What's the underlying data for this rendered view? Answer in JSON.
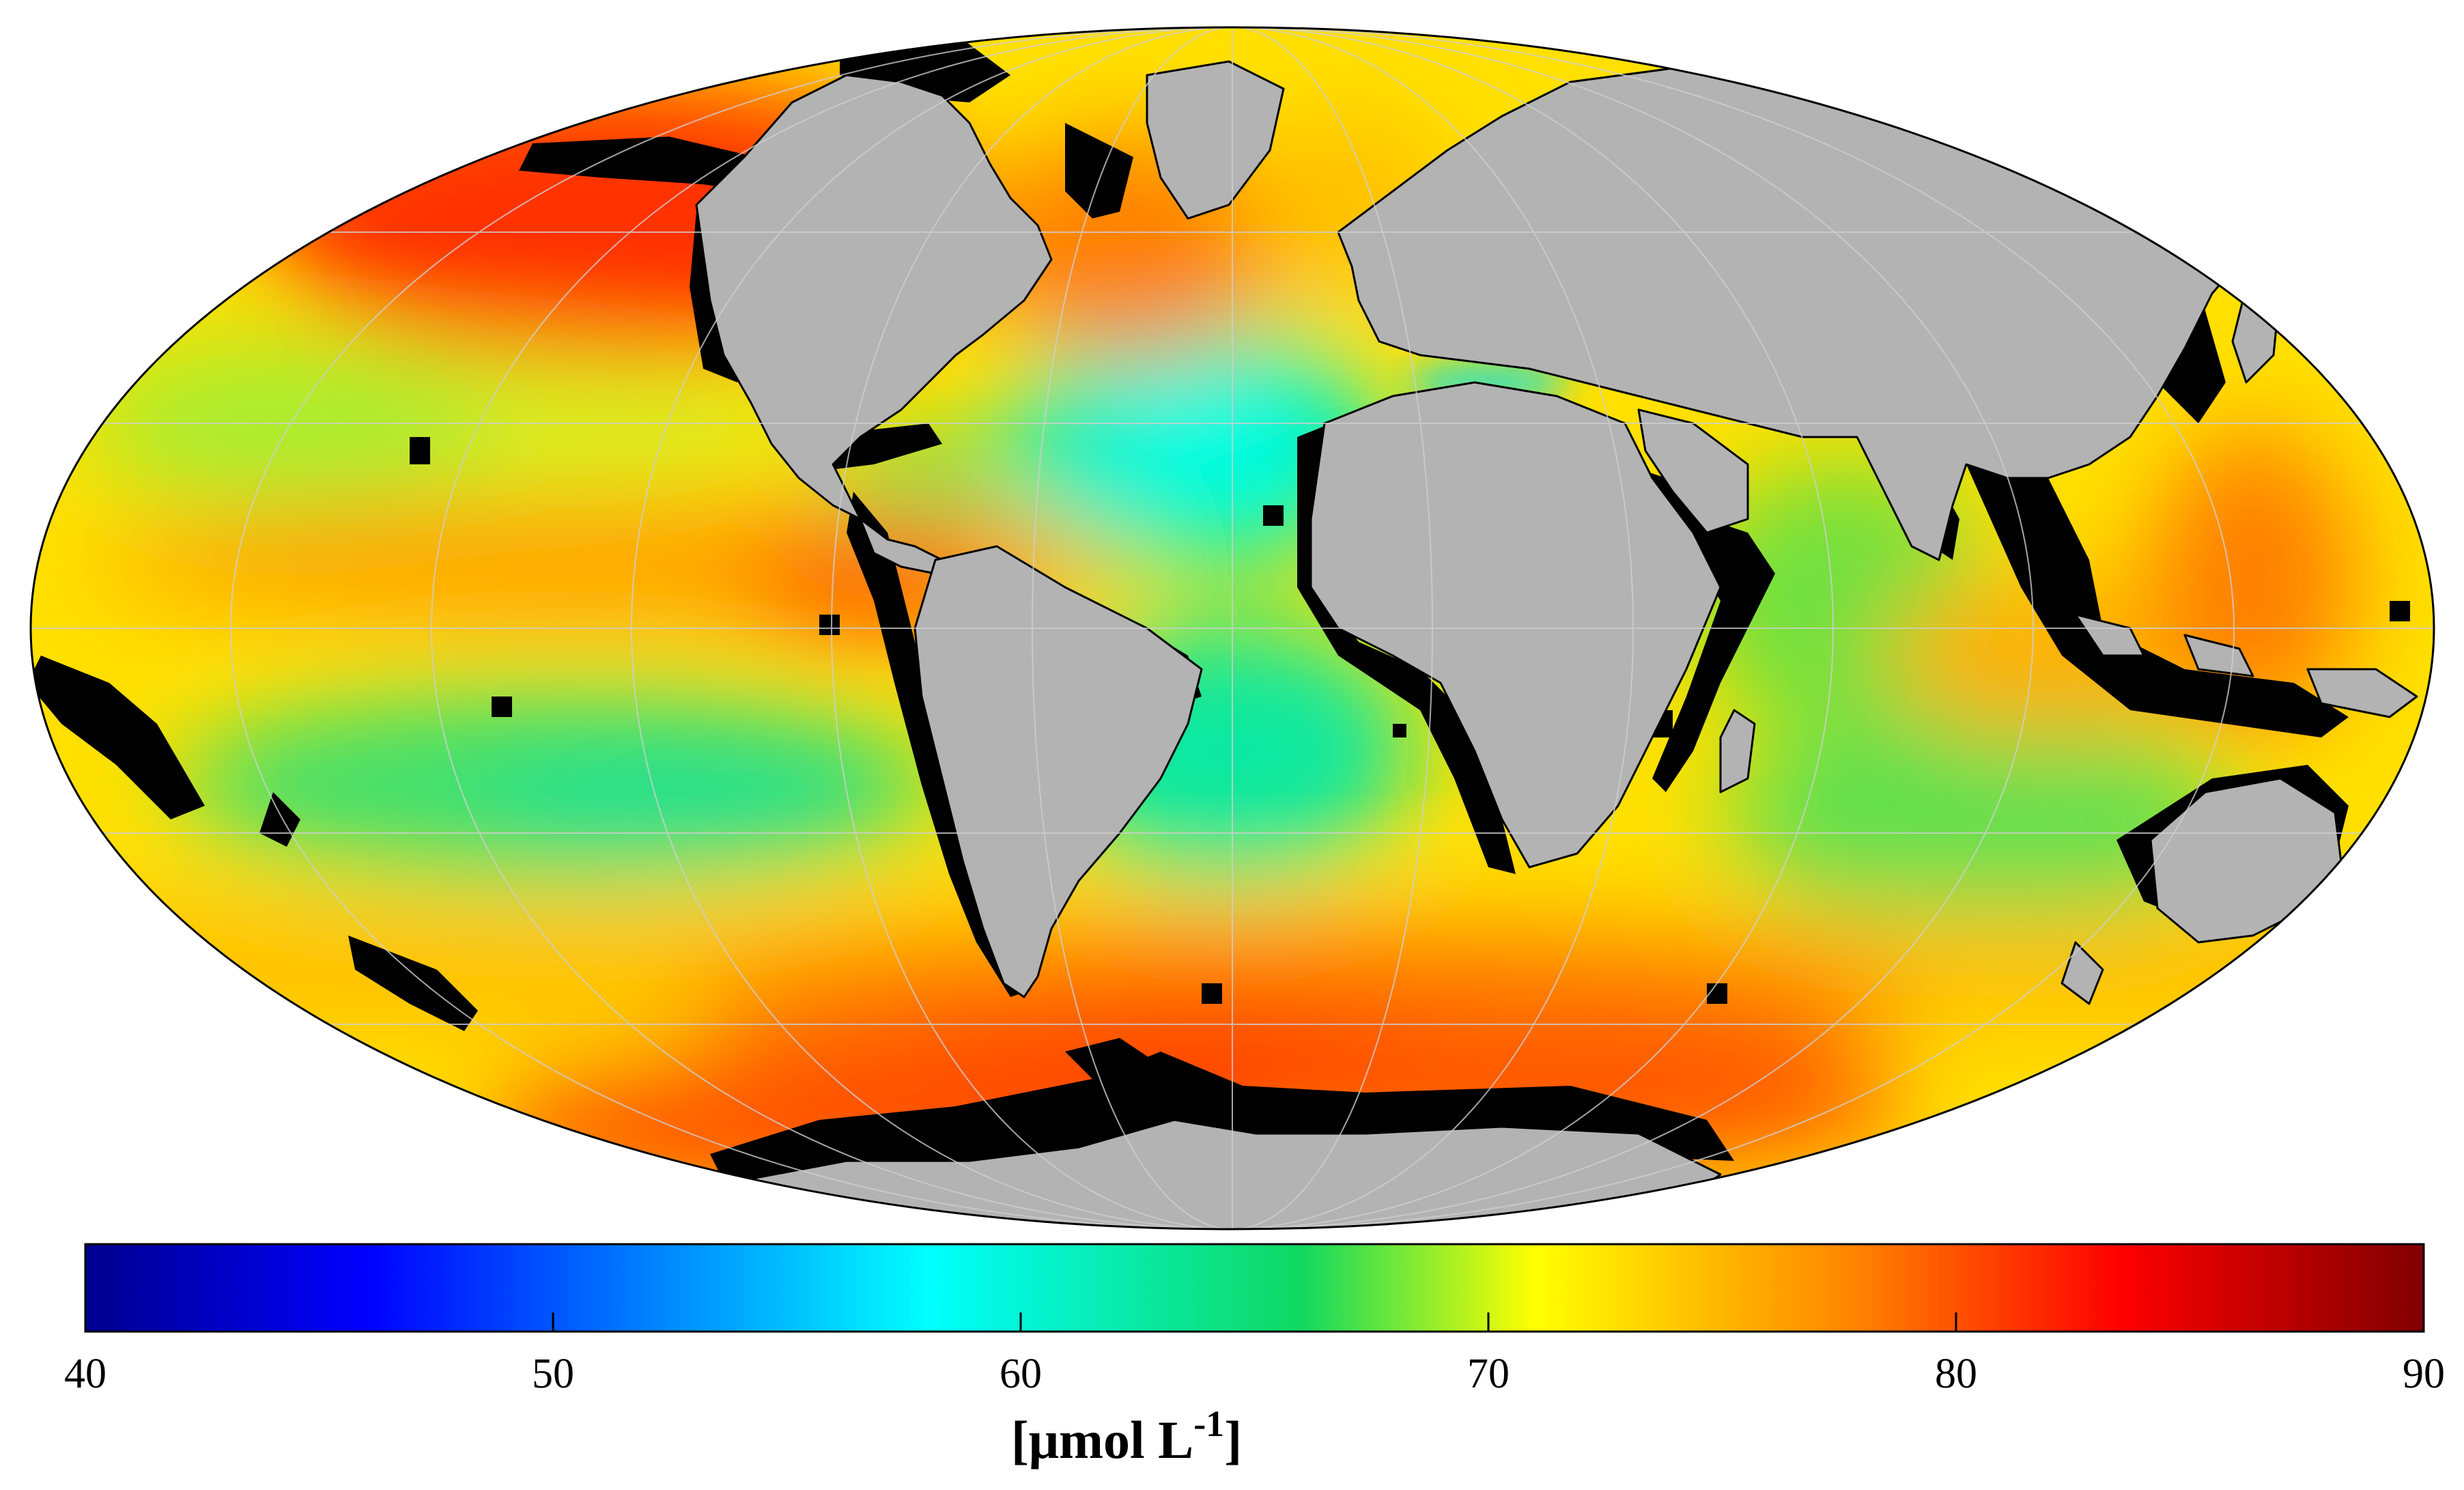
{
  "map": {
    "projection": "mollweide",
    "continent_color": "#b3b3b3",
    "nodata_color": "#000000",
    "graticule_color": "#cfcfcf"
  },
  "colorbar": {
    "colormap": "jet",
    "min": 40,
    "max": 90,
    "ticks": [
      40,
      50,
      60,
      70,
      80,
      90
    ],
    "tick_labels": [
      "40",
      "50",
      "60",
      "70",
      "80",
      "90"
    ],
    "unit_main": "[μmol L",
    "unit_sup": "-1",
    "unit_close": "]",
    "stops": [
      "#00008f",
      "#0000ff",
      "#0080ff",
      "#00ffff",
      "#00e080",
      "#20d040",
      "#ffff00",
      "#ff8000",
      "#ff0000",
      "#800000"
    ]
  }
}
